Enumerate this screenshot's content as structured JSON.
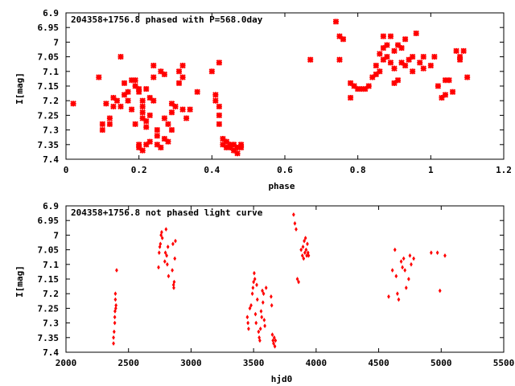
{
  "colors": {
    "points": "#ff0000",
    "frame": "#000000",
    "background": "#ffffff"
  },
  "chart_data": [
    {
      "type": "scatter",
      "title": "204358+1756.8 phased with P=568.0day",
      "xlabel": "phase",
      "ylabel": "I[mag]",
      "xlim": [
        0,
        1.2
      ],
      "ylim": [
        6.9,
        7.4
      ],
      "y_inverted": true,
      "grid": false,
      "marker": "star",
      "xticks": [
        "0",
        "0.2",
        "0.4",
        "0.6",
        "0.8",
        "1",
        "1.2"
      ],
      "yticks": [
        "6.9",
        "6.95",
        "7",
        "7.05",
        "7.1",
        "7.15",
        "7.2",
        "7.25",
        "7.3",
        "7.35",
        "7.4"
      ],
      "points": [
        [
          0.02,
          7.21
        ],
        [
          0.09,
          7.12
        ],
        [
          0.1,
          7.28
        ],
        [
          0.1,
          7.3
        ],
        [
          0.11,
          7.21
        ],
        [
          0.12,
          7.28
        ],
        [
          0.12,
          7.26
        ],
        [
          0.13,
          7.19
        ],
        [
          0.13,
          7.22
        ],
        [
          0.14,
          7.2
        ],
        [
          0.15,
          7.05
        ],
        [
          0.15,
          7.22
        ],
        [
          0.16,
          7.14
        ],
        [
          0.16,
          7.18
        ],
        [
          0.17,
          7.2
        ],
        [
          0.17,
          7.17
        ],
        [
          0.18,
          7.23
        ],
        [
          0.18,
          7.13
        ],
        [
          0.19,
          7.13
        ],
        [
          0.19,
          7.28
        ],
        [
          0.19,
          7.15
        ],
        [
          0.2,
          7.16
        ],
        [
          0.2,
          7.17
        ],
        [
          0.2,
          7.35
        ],
        [
          0.2,
          7.36
        ],
        [
          0.21,
          7.2
        ],
        [
          0.21,
          7.22
        ],
        [
          0.21,
          7.24
        ],
        [
          0.21,
          7.26
        ],
        [
          0.21,
          7.37
        ],
        [
          0.22,
          7.27
        ],
        [
          0.22,
          7.29
        ],
        [
          0.22,
          7.35
        ],
        [
          0.22,
          7.16
        ],
        [
          0.23,
          7.34
        ],
        [
          0.23,
          7.25
        ],
        [
          0.23,
          7.19
        ],
        [
          0.24,
          7.2
        ],
        [
          0.24,
          7.12
        ],
        [
          0.24,
          7.08
        ],
        [
          0.25,
          7.32
        ],
        [
          0.25,
          7.3
        ],
        [
          0.25,
          7.35
        ],
        [
          0.26,
          7.36
        ],
        [
          0.26,
          7.1
        ],
        [
          0.27,
          7.11
        ],
        [
          0.27,
          7.26
        ],
        [
          0.27,
          7.33
        ],
        [
          0.28,
          7.34
        ],
        [
          0.28,
          7.28
        ],
        [
          0.29,
          7.21
        ],
        [
          0.29,
          7.3
        ],
        [
          0.29,
          7.24
        ],
        [
          0.3,
          7.22
        ],
        [
          0.31,
          7.14
        ],
        [
          0.31,
          7.1
        ],
        [
          0.32,
          7.23
        ],
        [
          0.32,
          7.12
        ],
        [
          0.32,
          7.08
        ],
        [
          0.33,
          7.26
        ],
        [
          0.34,
          7.23
        ],
        [
          0.36,
          7.17
        ],
        [
          0.4,
          7.1
        ],
        [
          0.41,
          7.18
        ],
        [
          0.41,
          7.2
        ],
        [
          0.42,
          7.07
        ],
        [
          0.42,
          7.22
        ],
        [
          0.42,
          7.25
        ],
        [
          0.42,
          7.28
        ],
        [
          0.43,
          7.33
        ],
        [
          0.43,
          7.35
        ],
        [
          0.44,
          7.34
        ],
        [
          0.44,
          7.36
        ],
        [
          0.45,
          7.35
        ],
        [
          0.45,
          7.36
        ],
        [
          0.46,
          7.37
        ],
        [
          0.46,
          7.35
        ],
        [
          0.47,
          7.38
        ],
        [
          0.47,
          7.36
        ],
        [
          0.48,
          7.35
        ],
        [
          0.48,
          7.36
        ],
        [
          0.67,
          7.06
        ],
        [
          0.74,
          6.93
        ],
        [
          0.75,
          6.98
        ],
        [
          0.75,
          7.06
        ],
        [
          0.76,
          6.99
        ],
        [
          0.78,
          7.19
        ],
        [
          0.78,
          7.14
        ],
        [
          0.79,
          7.15
        ],
        [
          0.8,
          7.16
        ],
        [
          0.81,
          7.16
        ],
        [
          0.82,
          7.16
        ],
        [
          0.83,
          7.15
        ],
        [
          0.84,
          7.12
        ],
        [
          0.85,
          7.08
        ],
        [
          0.85,
          7.11
        ],
        [
          0.86,
          7.1
        ],
        [
          0.86,
          7.04
        ],
        [
          0.87,
          6.98
        ],
        [
          0.87,
          7.02
        ],
        [
          0.87,
          7.06
        ],
        [
          0.88,
          7.05
        ],
        [
          0.88,
          7.01
        ],
        [
          0.89,
          7.07
        ],
        [
          0.89,
          6.98
        ],
        [
          0.9,
          7.03
        ],
        [
          0.9,
          7.09
        ],
        [
          0.9,
          7.14
        ],
        [
          0.91,
          7.13
        ],
        [
          0.91,
          7.01
        ],
        [
          0.92,
          7.07
        ],
        [
          0.92,
          7.02
        ],
        [
          0.93,
          7.08
        ],
        [
          0.93,
          6.99
        ],
        [
          0.94,
          7.06
        ],
        [
          0.95,
          7.05
        ],
        [
          0.95,
          7.1
        ],
        [
          0.96,
          6.97
        ],
        [
          0.97,
          7.07
        ],
        [
          0.98,
          7.05
        ],
        [
          0.98,
          7.09
        ],
        [
          1.0,
          7.08
        ],
        [
          1.01,
          7.05
        ],
        [
          1.02,
          7.15
        ],
        [
          1.03,
          7.19
        ],
        [
          1.04,
          7.13
        ],
        [
          1.04,
          7.18
        ],
        [
          1.05,
          7.13
        ],
        [
          1.06,
          7.17
        ],
        [
          1.07,
          7.03
        ],
        [
          1.08,
          7.06
        ],
        [
          1.08,
          7.05
        ],
        [
          1.09,
          7.03
        ],
        [
          1.1,
          7.12
        ]
      ]
    },
    {
      "type": "scatter",
      "title": "204358+1756.8 not phased light curve",
      "xlabel": "hjd0",
      "ylabel": "I[mag]",
      "xlim": [
        2000,
        5500
      ],
      "ylim": [
        6.9,
        7.4
      ],
      "y_inverted": true,
      "grid": false,
      "marker": "diamond",
      "xticks": [
        "2000",
        "2500",
        "3000",
        "3500",
        "4000",
        "4500",
        "5000",
        "5500"
      ],
      "yticks": [
        "6.9",
        "6.95",
        "7",
        "7.05",
        "7.1",
        "7.15",
        "7.2",
        "7.25",
        "7.3",
        "7.35",
        "7.4"
      ],
      "points": [
        [
          2380,
          7.35
        ],
        [
          2380,
          7.37
        ],
        [
          2385,
          7.33
        ],
        [
          2390,
          7.3
        ],
        [
          2390,
          7.28
        ],
        [
          2392,
          7.26
        ],
        [
          2395,
          7.22
        ],
        [
          2395,
          7.2
        ],
        [
          2398,
          7.25
        ],
        [
          2400,
          7.24
        ],
        [
          2405,
          7.12
        ],
        [
          2740,
          7.11
        ],
        [
          2745,
          7.06
        ],
        [
          2750,
          7.04
        ],
        [
          2755,
          7.03
        ],
        [
          2760,
          7.0
        ],
        [
          2765,
          6.99
        ],
        [
          2770,
          7.01
        ],
        [
          2790,
          7.09
        ],
        [
          2795,
          7.06
        ],
        [
          2800,
          6.98
        ],
        [
          2805,
          7.07
        ],
        [
          2810,
          7.1
        ],
        [
          2815,
          7.04
        ],
        [
          2820,
          7.14
        ],
        [
          2850,
          7.12
        ],
        [
          2855,
          7.03
        ],
        [
          2860,
          7.17
        ],
        [
          2862,
          7.18
        ],
        [
          2865,
          7.16
        ],
        [
          2870,
          7.08
        ],
        [
          2875,
          7.02
        ],
        [
          3450,
          7.28
        ],
        [
          3455,
          7.3
        ],
        [
          3460,
          7.32
        ],
        [
          3470,
          7.25
        ],
        [
          3480,
          7.24
        ],
        [
          3490,
          7.2
        ],
        [
          3495,
          7.18
        ],
        [
          3500,
          7.16
        ],
        [
          3505,
          7.13
        ],
        [
          3510,
          7.15
        ],
        [
          3515,
          7.27
        ],
        [
          3520,
          7.3
        ],
        [
          3525,
          7.17
        ],
        [
          3530,
          7.22
        ],
        [
          3540,
          7.33
        ],
        [
          3545,
          7.35
        ],
        [
          3550,
          7.36
        ],
        [
          3555,
          7.32
        ],
        [
          3560,
          7.26
        ],
        [
          3565,
          7.28
        ],
        [
          3570,
          7.19
        ],
        [
          3575,
          7.23
        ],
        [
          3580,
          7.2
        ],
        [
          3585,
          7.29
        ],
        [
          3590,
          7.31
        ],
        [
          3600,
          7.18
        ],
        [
          3640,
          7.21
        ],
        [
          3645,
          7.24
        ],
        [
          3650,
          7.34
        ],
        [
          3655,
          7.36
        ],
        [
          3660,
          7.37
        ],
        [
          3665,
          7.35
        ],
        [
          3670,
          7.38
        ],
        [
          3675,
          7.36
        ],
        [
          3820,
          6.93
        ],
        [
          3830,
          6.96
        ],
        [
          3840,
          6.98
        ],
        [
          3850,
          7.15
        ],
        [
          3860,
          7.16
        ],
        [
          3880,
          7.05
        ],
        [
          3890,
          7.07
        ],
        [
          3895,
          7.04
        ],
        [
          3900,
          7.08
        ],
        [
          3905,
          7.02
        ],
        [
          3910,
          7.06
        ],
        [
          3915,
          7.01
        ],
        [
          3920,
          7.05
        ],
        [
          3925,
          7.07
        ],
        [
          3930,
          7.03
        ],
        [
          3935,
          7.06
        ],
        [
          3940,
          7.07
        ],
        [
          4580,
          7.21
        ],
        [
          4610,
          7.12
        ],
        [
          4630,
          7.05
        ],
        [
          4640,
          7.14
        ],
        [
          4650,
          7.2
        ],
        [
          4660,
          7.22
        ],
        [
          4680,
          7.09
        ],
        [
          4690,
          7.11
        ],
        [
          4700,
          7.08
        ],
        [
          4710,
          7.12
        ],
        [
          4720,
          7.18
        ],
        [
          4740,
          7.15
        ],
        [
          4750,
          7.07
        ],
        [
          4760,
          7.1
        ],
        [
          4780,
          7.08
        ],
        [
          4920,
          7.06
        ],
        [
          4970,
          7.06
        ],
        [
          4990,
          7.19
        ],
        [
          5030,
          7.07
        ]
      ]
    }
  ]
}
